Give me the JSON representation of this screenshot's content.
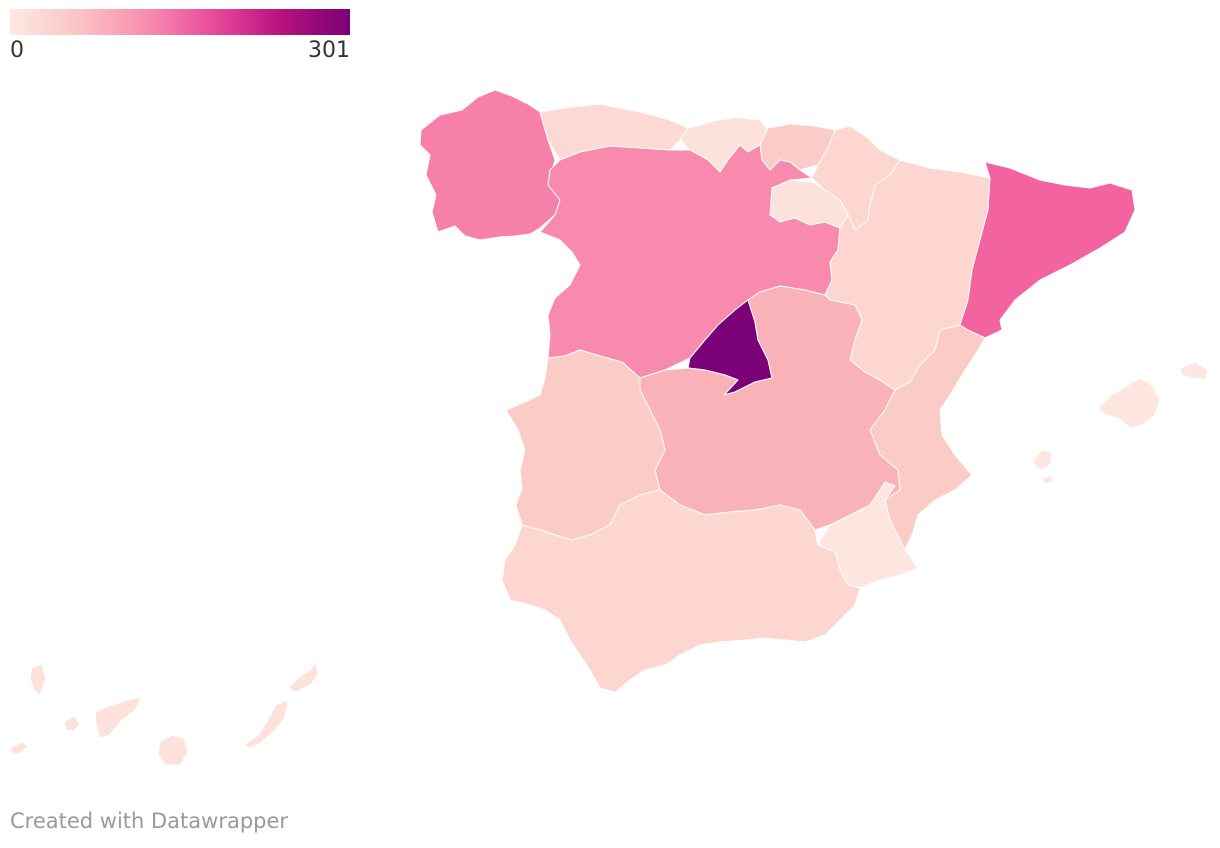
{
  "legend": {
    "min_label": "0",
    "max_label": "301",
    "gradient_colors": [
      "#fee9e3",
      "#fbc5c4",
      "#f88db0",
      "#e84a9b",
      "#b5117f",
      "#7a0177"
    ]
  },
  "credit": "Created with Datawrapper",
  "colors": {
    "stroke": "#ffffff",
    "background": "#ffffff"
  },
  "regions": [
    {
      "key": "galicia",
      "color": "#f780ab"
    },
    {
      "key": "asturias",
      "color": "#fcd9d2"
    },
    {
      "key": "cantabria",
      "color": "#fde2dc"
    },
    {
      "key": "pais-vasco",
      "color": "#fbcbc8"
    },
    {
      "key": "navarra",
      "color": "#fcd6cf"
    },
    {
      "key": "la-rioja",
      "color": "#fde2dc"
    },
    {
      "key": "castilla-y-leon",
      "color": "#f78aad"
    },
    {
      "key": "aragon",
      "color": "#fcd6cf"
    },
    {
      "key": "cataluna",
      "color": "#f2639f"
    },
    {
      "key": "madrid",
      "color": "#7a0177"
    },
    {
      "key": "castilla-la-mancha",
      "color": "#f9b3b8"
    },
    {
      "key": "extremadura",
      "color": "#fbcbc5"
    },
    {
      "key": "comunidad-valenciana",
      "color": "#fbcbc5"
    },
    {
      "key": "murcia",
      "color": "#fde6df"
    },
    {
      "key": "andalucia",
      "color": "#fcd6cf"
    },
    {
      "key": "baleares",
      "color": "#fde6df"
    },
    {
      "key": "canarias",
      "color": "#fde2dc"
    }
  ]
}
